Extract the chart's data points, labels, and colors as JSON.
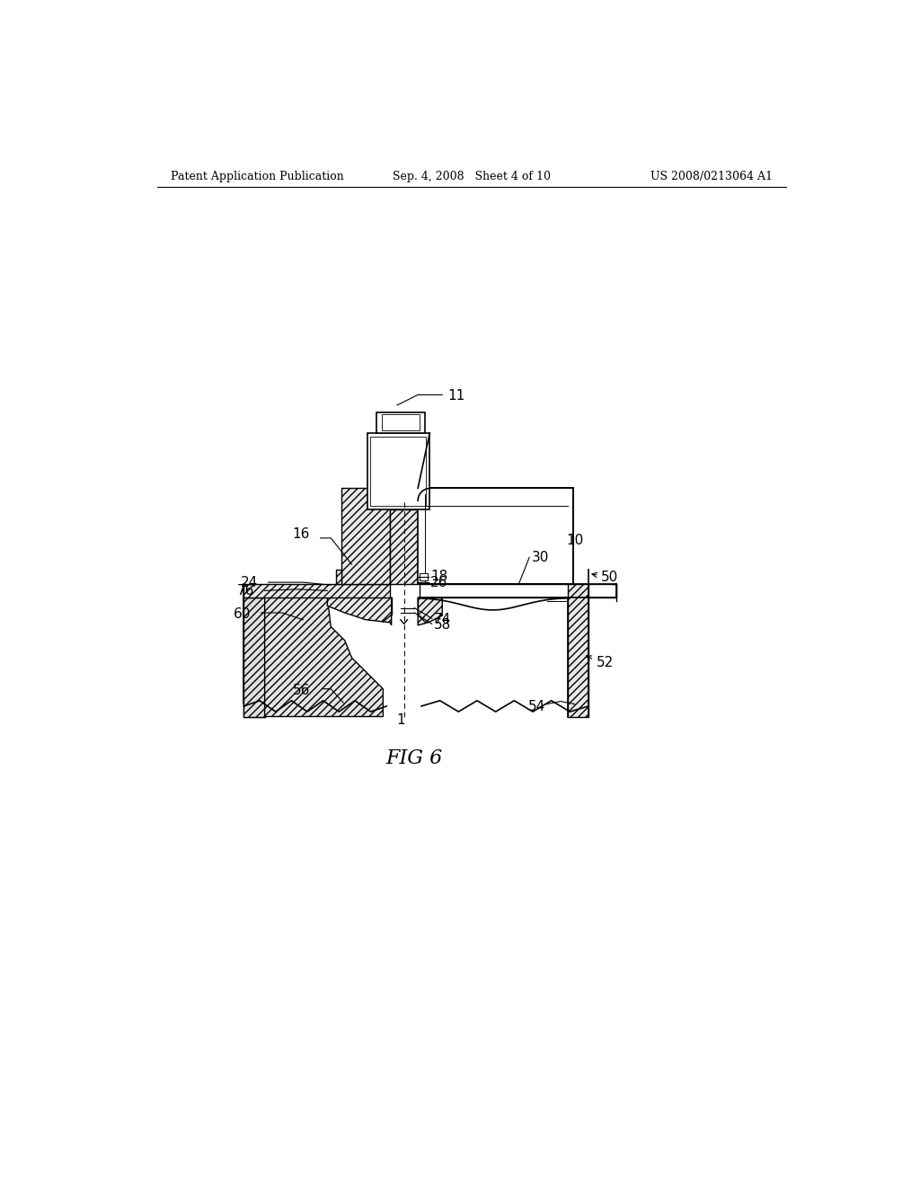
{
  "bg_color": "#ffffff",
  "header_left": "Patent Application Publication",
  "header_center": "Sep. 4, 2008   Sheet 4 of 10",
  "header_right": "US 2008/0213064 A1",
  "figure_label": "FIG 6"
}
